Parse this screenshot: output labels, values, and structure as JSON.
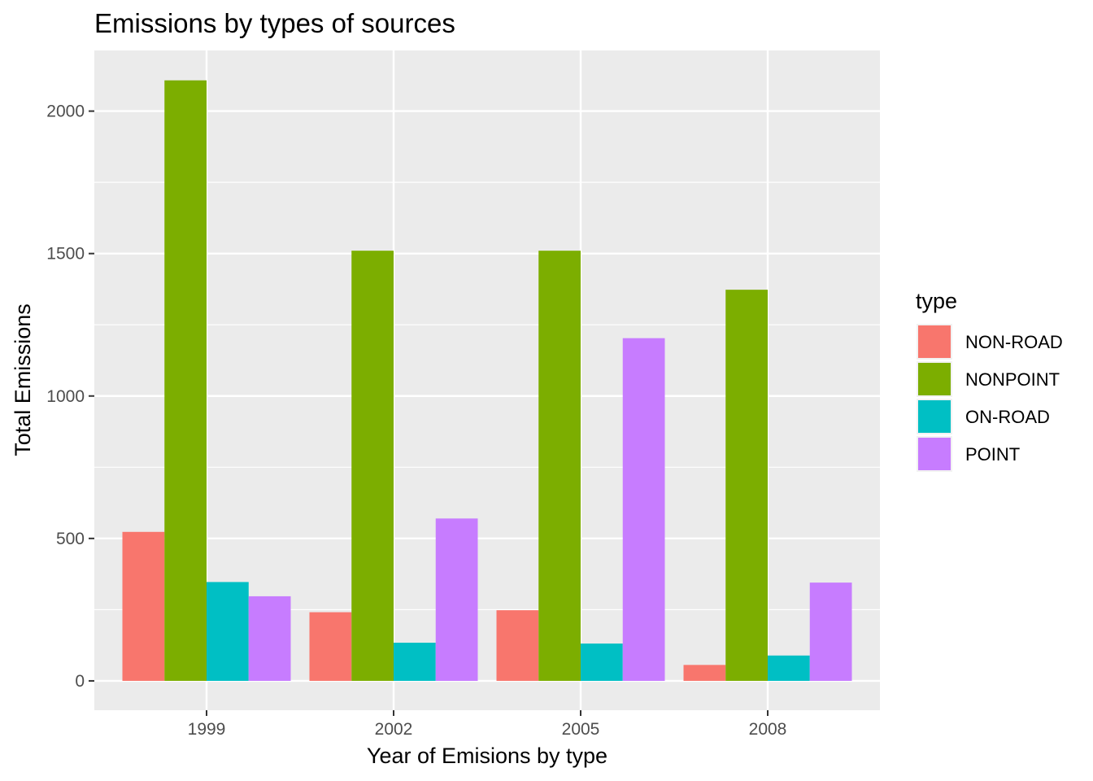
{
  "chart_data": {
    "type": "bar",
    "title": "Emissions by  types of sources",
    "xlabel": "Year of Emisions by type",
    "ylabel": "Total Emissions",
    "categories": [
      "1999",
      "2002",
      "2005",
      "2008"
    ],
    "series": [
      {
        "name": "NON-ROAD",
        "color": "#F8766D",
        "values": [
          523,
          241,
          248,
          56
        ]
      },
      {
        "name": "NONPOINT",
        "color": "#7CAE00",
        "values": [
          2108,
          1510,
          1510,
          1373
        ]
      },
      {
        "name": "ON-ROAD",
        "color": "#00BFC4",
        "values": [
          347,
          134,
          131,
          89
        ]
      },
      {
        "name": "POINT",
        "color": "#C77CFF",
        "values": [
          297,
          570,
          1203,
          345
        ]
      }
    ],
    "ylim": [
      -103,
      2213
    ],
    "yticks": [
      0,
      500,
      1000,
      1500,
      2000
    ],
    "legend": {
      "title": "type",
      "position": "right"
    },
    "grid": true,
    "panel_background": "#EBEBEB"
  }
}
